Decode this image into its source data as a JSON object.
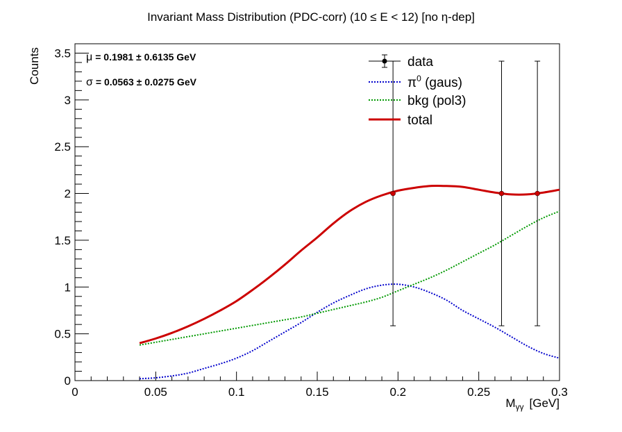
{
  "chart_data": {
    "type": "line",
    "title": "Invariant Mass Distribution (PDC-corr)   (10 ≤ E < 12)   [no η-dep]",
    "xlabel": "M",
    "xlabel_sub": "γγ",
    "xlabel_unit": "[GeV]",
    "ylabel": "Counts",
    "xlim": [
      0,
      0.3
    ],
    "ylim": [
      0,
      3.6
    ],
    "x_ticks": [
      0,
      0.05,
      0.1,
      0.15,
      0.2,
      0.25,
      0.3
    ],
    "x_tick_labels": [
      "0",
      "0.05",
      "0.1",
      "0.15",
      "0.2",
      "0.25",
      "0.3"
    ],
    "y_ticks": [
      0,
      0.5,
      1,
      1.5,
      2,
      2.5,
      3,
      3.5
    ],
    "y_tick_labels": [
      "0",
      "0.5",
      "1",
      "1.5",
      "2",
      "2.5",
      "3",
      "3.5"
    ],
    "fit_params": {
      "mu_symbol": "μ",
      "mu_text": "= 0.1981 ± 0.6135 GeV",
      "sigma_symbol": "σ",
      "sigma_text": "= 0.0563 ± 0.0275 GeV"
    },
    "legend": {
      "placement": "top-right",
      "entries": [
        {
          "key": "data",
          "label": "data"
        },
        {
          "key": "gaus",
          "label_main": "π",
          "label_sup": "0",
          "label_rest": " (gaus)"
        },
        {
          "key": "bkg",
          "label": "bkg (pol3)"
        },
        {
          "key": "total",
          "label": "total"
        }
      ]
    },
    "data_points": [
      {
        "x": 0.1969,
        "y": 2,
        "err_low": 1.414,
        "err_high": 1.414
      },
      {
        "x": 0.2641,
        "y": 2,
        "err_low": 1.414,
        "err_high": 1.414
      },
      {
        "x": 0.2863,
        "y": 2,
        "err_low": 1.414,
        "err_high": 1.414
      }
    ],
    "series": [
      {
        "name": "π0 (gaus)",
        "style": "dotted",
        "color": "#0000cc",
        "x": [
          0.04,
          0.05,
          0.06,
          0.07,
          0.08,
          0.09,
          0.1,
          0.11,
          0.12,
          0.13,
          0.14,
          0.15,
          0.16,
          0.17,
          0.18,
          0.19,
          0.2,
          0.21,
          0.22,
          0.23,
          0.24,
          0.25,
          0.26,
          0.27,
          0.28,
          0.29,
          0.3
        ],
        "y": [
          0.02,
          0.03,
          0.05,
          0.08,
          0.13,
          0.18,
          0.24,
          0.32,
          0.42,
          0.52,
          0.62,
          0.73,
          0.83,
          0.91,
          0.98,
          1.02,
          1.03,
          1.0,
          0.94,
          0.86,
          0.75,
          0.66,
          0.57,
          0.47,
          0.37,
          0.29,
          0.24
        ]
      },
      {
        "name": "bkg (pol3)",
        "style": "dotted",
        "color": "#009900",
        "x": [
          0.04,
          0.05,
          0.06,
          0.07,
          0.08,
          0.09,
          0.1,
          0.11,
          0.12,
          0.13,
          0.14,
          0.15,
          0.16,
          0.17,
          0.18,
          0.19,
          0.2,
          0.21,
          0.22,
          0.23,
          0.24,
          0.25,
          0.26,
          0.27,
          0.28,
          0.29,
          0.3
        ],
        "y": [
          0.38,
          0.41,
          0.44,
          0.47,
          0.5,
          0.53,
          0.56,
          0.59,
          0.62,
          0.65,
          0.68,
          0.72,
          0.76,
          0.8,
          0.84,
          0.89,
          0.96,
          1.03,
          1.1,
          1.18,
          1.27,
          1.36,
          1.45,
          1.55,
          1.65,
          1.74,
          1.81
        ]
      },
      {
        "name": "total",
        "style": "solid",
        "color": "#cc0000",
        "x": [
          0.04,
          0.05,
          0.06,
          0.07,
          0.08,
          0.09,
          0.1,
          0.11,
          0.12,
          0.13,
          0.14,
          0.15,
          0.16,
          0.17,
          0.18,
          0.19,
          0.2,
          0.21,
          0.22,
          0.23,
          0.24,
          0.25,
          0.26,
          0.27,
          0.28,
          0.29,
          0.3
        ],
        "y": [
          0.4,
          0.45,
          0.51,
          0.58,
          0.66,
          0.75,
          0.85,
          0.97,
          1.1,
          1.24,
          1.39,
          1.53,
          1.68,
          1.81,
          1.91,
          1.98,
          2.03,
          2.06,
          2.08,
          2.08,
          2.07,
          2.04,
          2.01,
          1.99,
          1.99,
          2.01,
          2.04
        ]
      }
    ]
  }
}
